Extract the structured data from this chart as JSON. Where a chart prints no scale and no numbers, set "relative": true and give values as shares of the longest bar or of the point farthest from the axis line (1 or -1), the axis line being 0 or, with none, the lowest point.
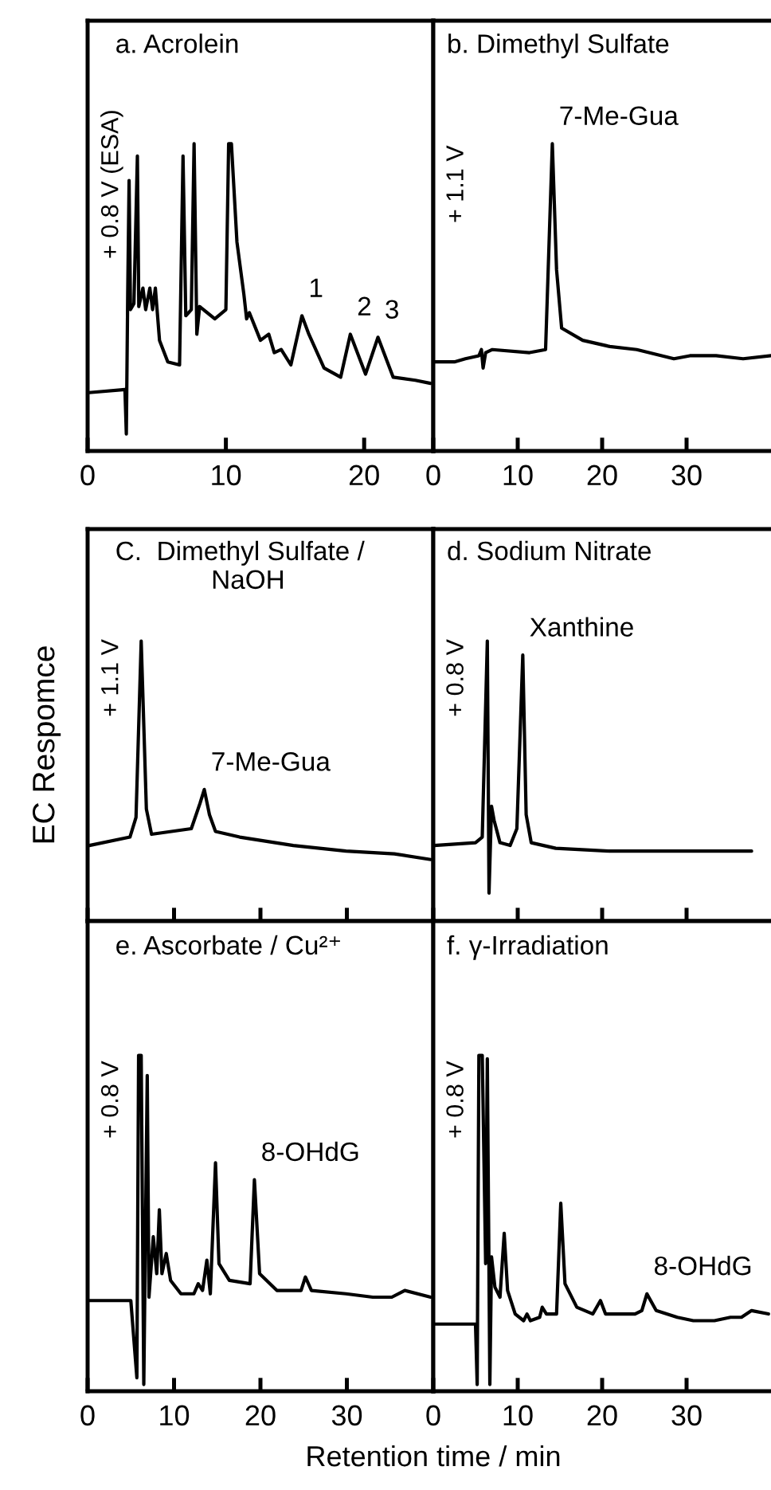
{
  "chart_data": [
    {
      "type": "line",
      "title": "a. Acrolein",
      "relative": true,
      "xlim": [
        0,
        25
      ],
      "xticks": [
        0,
        10,
        20
      ],
      "tick_labels": "x",
      "grid": false,
      "legend": false,
      "marker": "none",
      "line_style": "solid",
      "annotations": [
        "+ 0.8 V (ESA)",
        {
          "text": "1",
          "x": 15.5,
          "y": 0.44
        },
        {
          "text": "2",
          "x": 19.0,
          "y": 0.38
        },
        {
          "text": "3",
          "x": 21.0,
          "y": 0.37
        }
      ],
      "series": [
        {
          "color": "#000000",
          "x": [
            0.1,
            2.7,
            2.8,
            2.9,
            3.0,
            3.1,
            3.35,
            3.6,
            3.7,
            4.0,
            4.2,
            4.5,
            4.7,
            4.9,
            5.2,
            5.8,
            6.65,
            6.9,
            7.1,
            7.5,
            7.7,
            7.9,
            8.1,
            9.2,
            10.0,
            10.2,
            10.4,
            10.8,
            11.3,
            11.5,
            11.7,
            12.5,
            13.1,
            13.5,
            14.0,
            14.7,
            15.5,
            16.0,
            17.1,
            18.3,
            19.0,
            20.1,
            21.0,
            22.1,
            23.7,
            24.8
          ],
          "values": [
            0.19,
            0.2,
            0.055,
            0.51,
            0.88,
            0.46,
            0.48,
            0.96,
            0.47,
            0.53,
            0.46,
            0.53,
            0.46,
            0.53,
            0.36,
            0.29,
            0.28,
            0.96,
            0.44,
            0.46,
            1.0,
            0.38,
            0.47,
            0.43,
            0.46,
            1.0,
            1.0,
            0.68,
            0.51,
            0.43,
            0.45,
            0.36,
            0.38,
            0.32,
            0.33,
            0.28,
            0.44,
            0.38,
            0.27,
            0.24,
            0.38,
            0.25,
            0.37,
            0.24,
            0.23,
            0.22
          ]
        }
      ]
    },
    {
      "type": "line",
      "title": "b. Dimethyl Sulfate",
      "relative": true,
      "xlim": [
        0,
        40
      ],
      "xticks": [
        0,
        10,
        20,
        30
      ],
      "tick_labels": "x",
      "grid": false,
      "legend": false,
      "marker": "none",
      "line_style": "solid",
      "annotations": [
        "+ 1.1 V",
        {
          "text": "7-Me-Gua",
          "x": 14.1,
          "y": 1.0
        }
      ],
      "series": [
        {
          "color": "#000000",
          "x": [
            0.1,
            2.5,
            3.8,
            5.4,
            5.7,
            5.9,
            6.2,
            7.0,
            11.4,
            13.3,
            14.1,
            14.6,
            15.2,
            17.7,
            20.9,
            24.1,
            28.5,
            30.4,
            33.5,
            36.7,
            40.0
          ],
          "values": [
            0.29,
            0.29,
            0.3,
            0.31,
            0.33,
            0.27,
            0.32,
            0.33,
            0.32,
            0.33,
            1.0,
            0.59,
            0.4,
            0.36,
            0.34,
            0.33,
            0.3,
            0.31,
            0.31,
            0.3,
            0.31
          ]
        }
      ]
    },
    {
      "type": "line",
      "title": "C.  Dimethyl Sulfate /\n             NaOH",
      "ylabel": "EC Respomce",
      "relative": true,
      "xlim": [
        0,
        40
      ],
      "xticks": [
        {
          "value": 0,
          "label": null
        },
        {
          "value": 10,
          "label": null
        },
        {
          "value": 20,
          "label": null
        },
        {
          "value": 30,
          "label": null
        }
      ],
      "tick_labels": false,
      "grid": false,
      "legend": false,
      "marker": "none",
      "line_style": "solid",
      "annotations": [
        "+ 1.1 V",
        {
          "text": "7-Me-Gua",
          "x": 13.5,
          "y": 0.47
        }
      ],
      "series": [
        {
          "color": "#000000",
          "x": [
            0.2,
            4.9,
            5.6,
            6.2,
            6.8,
            7.4,
            12.0,
            13.0,
            13.5,
            14.1,
            14.8,
            17.6,
            23.8,
            29.9,
            35.5,
            39.7
          ],
          "values": [
            0.27,
            0.3,
            0.37,
            1.0,
            0.4,
            0.31,
            0.33,
            0.42,
            0.47,
            0.38,
            0.32,
            0.3,
            0.27,
            0.25,
            0.24,
            0.22
          ]
        }
      ]
    },
    {
      "type": "line",
      "title": "d. Sodium Nitrate",
      "relative": true,
      "xlim": [
        0,
        40
      ],
      "xticks": [
        {
          "value": 0,
          "label": null
        },
        {
          "value": 10,
          "label": null
        },
        {
          "value": 20,
          "label": null
        },
        {
          "value": 30,
          "label": null
        }
      ],
      "tick_labels": false,
      "grid": false,
      "legend": false,
      "marker": "none",
      "line_style": "solid",
      "annotations": [
        "+ 0.8 V",
        {
          "text": "Xanthine",
          "x": 10.6,
          "y": 0.95
        }
      ],
      "series": [
        {
          "color": "#000000",
          "x": [
            0.1,
            5.0,
            5.8,
            6.4,
            6.6,
            6.9,
            7.2,
            7.9,
            9.1,
            9.9,
            10.6,
            11.0,
            11.6,
            14.5,
            20.8,
            27.0,
            30.2,
            37.7
          ],
          "values": [
            0.27,
            0.28,
            0.3,
            1.0,
            0.1,
            0.41,
            0.36,
            0.28,
            0.27,
            0.33,
            0.95,
            0.38,
            0.28,
            0.26,
            0.25,
            0.25,
            0.25,
            0.25
          ]
        }
      ]
    },
    {
      "type": "line",
      "title": "e. Ascorbate / Cu²⁺",
      "xlabel": "Retention time / min",
      "relative": true,
      "xlim": [
        0,
        40
      ],
      "xticks": [
        0,
        10,
        20,
        30
      ],
      "tick_labels": "x",
      "grid": false,
      "legend": false,
      "marker": "none",
      "line_style": "solid",
      "annotations": [
        "+ 0.8 V",
        {
          "text": "8-OHdG",
          "x": 19.3,
          "y": 0.63
        }
      ],
      "series": [
        {
          "color": "#000000",
          "x": [
            0.2,
            5.0,
            5.7,
            5.9,
            6.2,
            6.5,
            6.9,
            7.1,
            7.6,
            8.0,
            8.3,
            8.6,
            9.1,
            9.6,
            10.8,
            12.3,
            12.8,
            13.3,
            13.8,
            14.2,
            14.8,
            15.2,
            16.4,
            18.8,
            19.3,
            19.9,
            21.9,
            24.7,
            25.2,
            25.9,
            29.9,
            33.0,
            35.2,
            36.7,
            39.7
          ],
          "values": [
            0.27,
            0.27,
            0.04,
            1.0,
            1.0,
            0.02,
            0.94,
            0.28,
            0.46,
            0.35,
            0.54,
            0.35,
            0.41,
            0.33,
            0.29,
            0.29,
            0.32,
            0.3,
            0.39,
            0.29,
            0.68,
            0.38,
            0.33,
            0.32,
            0.63,
            0.35,
            0.3,
            0.3,
            0.34,
            0.3,
            0.29,
            0.28,
            0.28,
            0.3,
            0.28
          ]
        }
      ]
    },
    {
      "type": "line",
      "title": "f. γ-Irradiation",
      "relative": true,
      "xlim": [
        0,
        40
      ],
      "xticks": [
        0,
        10,
        20,
        30
      ],
      "tick_labels": "x",
      "grid": false,
      "legend": false,
      "marker": "none",
      "line_style": "solid",
      "annotations": [
        "+ 0.8 V",
        {
          "text": "8-OHdG",
          "x": 25.3,
          "y": 0.29
        }
      ],
      "series": [
        {
          "color": "#000000",
          "x": [
            0.1,
            5.0,
            5.2,
            5.4,
            5.8,
            6.2,
            6.4,
            6.7,
            6.9,
            7.3,
            7.9,
            8.4,
            8.8,
            9.7,
            10.7,
            11.1,
            11.5,
            12.6,
            12.9,
            13.4,
            14.6,
            15.1,
            15.6,
            17.0,
            18.9,
            19.8,
            20.4,
            23.9,
            24.7,
            25.3,
            26.4,
            28.9,
            30.8,
            33.3,
            35.2,
            36.5,
            37.7,
            39.7
          ],
          "values": [
            0.2,
            0.2,
            0.02,
            1.0,
            1.0,
            0.38,
            0.99,
            0.02,
            0.4,
            0.31,
            0.28,
            0.47,
            0.3,
            0.23,
            0.21,
            0.23,
            0.21,
            0.22,
            0.25,
            0.23,
            0.23,
            0.56,
            0.32,
            0.25,
            0.23,
            0.27,
            0.23,
            0.23,
            0.24,
            0.29,
            0.24,
            0.22,
            0.21,
            0.21,
            0.22,
            0.22,
            0.24,
            0.23
          ]
        }
      ]
    }
  ]
}
